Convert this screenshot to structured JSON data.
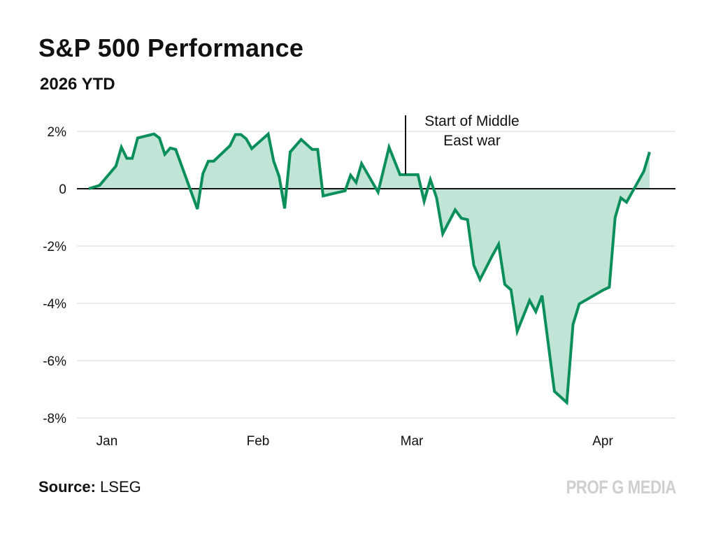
{
  "header": {
    "title": "S&P 500 Performance",
    "subtitle": "2026 YTD"
  },
  "footer": {
    "source_label": "Source:",
    "source_value": "LSEG",
    "brand": "PROF G MEDIA"
  },
  "colors": {
    "line": "#0a8f5a",
    "fill": "#c0e4d6",
    "grid": "#ececec",
    "zero_line": "#111111"
  },
  "chart_data": {
    "type": "area",
    "title": "S&P 500 Performance",
    "subtitle": "2026 YTD",
    "xlabel": "",
    "ylabel": "",
    "ylim": [
      -8,
      2
    ],
    "y_ticks": [
      2,
      0,
      -2,
      -4,
      -6,
      -8
    ],
    "y_tick_labels": [
      "2%",
      "0",
      "-2%",
      "-4%",
      "-6%",
      "-8%"
    ],
    "x_tick_labels": [
      "Jan",
      "Feb",
      "Mar",
      "Apr"
    ],
    "grid": true,
    "unit": "%",
    "series": [
      {
        "x": [
          "2026-01-02",
          "2026-01-04",
          "2026-01-07",
          "2026-01-08",
          "2026-01-09",
          "2026-01-10",
          "2026-01-11",
          "2026-01-14",
          "2026-01-15",
          "2026-01-16",
          "2026-01-17",
          "2026-01-18",
          "2026-01-22",
          "2026-01-23",
          "2026-01-24",
          "2026-01-25",
          "2026-01-28",
          "2026-01-29",
          "2026-01-30",
          "2026-01-31",
          "2026-02-01",
          "2026-02-04",
          "2026-02-05",
          "2026-02-06",
          "2026-02-07",
          "2026-02-08",
          "2026-02-10",
          "2026-02-12",
          "2026-02-13",
          "2026-02-14",
          "2026-02-18",
          "2026-02-19",
          "2026-02-20",
          "2026-02-21",
          "2026-02-24",
          "2026-02-26",
          "2026-02-28",
          "2026-03-03",
          "2026-03-04",
          "2026-03-05",
          "2026-03-06",
          "2026-03-07",
          "2026-03-09",
          "2026-03-10",
          "2026-03-11",
          "2026-03-12",
          "2026-03-13",
          "2026-03-15",
          "2026-03-16",
          "2026-03-17",
          "2026-03-18",
          "2026-03-19",
          "2026-03-21",
          "2026-03-22",
          "2026-03-23",
          "2026-03-25",
          "2026-03-27",
          "2026-03-28",
          "2026-03-29",
          "2026-04-02",
          "2026-04-03",
          "2026-04-04",
          "2026-04-05",
          "2026-04-06",
          "2026-04-09",
          "2026-04-10"
        ],
        "values": [
          0,
          0.12,
          0.79,
          1.45,
          1.06,
          1.06,
          1.77,
          1.91,
          1.77,
          1.2,
          1.42,
          1.37,
          -0.71,
          0.52,
          0.96,
          0.96,
          1.5,
          1.89,
          1.89,
          1.74,
          1.4,
          1.91,
          0.96,
          0.42,
          -0.69,
          1.28,
          1.72,
          1.37,
          1.37,
          -0.25,
          -0.07,
          0.47,
          0.22,
          0.88,
          -0.12,
          1.45,
          0.49,
          0.49,
          -0.44,
          0.32,
          -0.32,
          -1.57,
          -0.74,
          -1.03,
          -1.08,
          -2.67,
          -3.17,
          -2.33,
          -1.94,
          -3.34,
          -3.53,
          -4.98,
          -3.9,
          -4.29,
          -3.73,
          -7.07,
          -7.46,
          -4.74,
          -4.02,
          -3.53,
          -3.44,
          -1.01,
          -0.32,
          -0.47,
          0.61,
          1.28
        ]
      }
    ],
    "annotations": [
      {
        "x": "2026-03-01",
        "text_lines": [
          "Start of Middle",
          "East war"
        ]
      }
    ]
  }
}
